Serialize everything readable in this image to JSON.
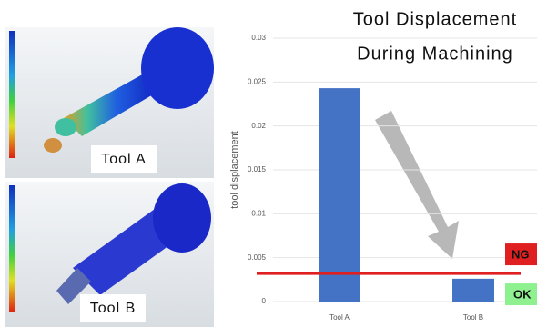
{
  "chart_data": {
    "type": "bar",
    "title": [
      "Tool Displacement",
      "During Machining"
    ],
    "y_label": "tool displacement",
    "categories": [
      "Tool A",
      "Tool B"
    ],
    "values": [
      0.0243,
      0.0026
    ],
    "color": "#4472c4",
    "ylim": [
      0,
      0.03
    ],
    "yticks": [
      0,
      0.005,
      0.01,
      0.015,
      0.02,
      0.025,
      0.03
    ],
    "grid": true,
    "threshold": {
      "value": 0.0032,
      "color": "#e02020",
      "labels": [
        "NG",
        "OK"
      ]
    }
  },
  "panels": [
    {
      "label": "Tool A"
    },
    {
      "label": "Tool B"
    }
  ]
}
